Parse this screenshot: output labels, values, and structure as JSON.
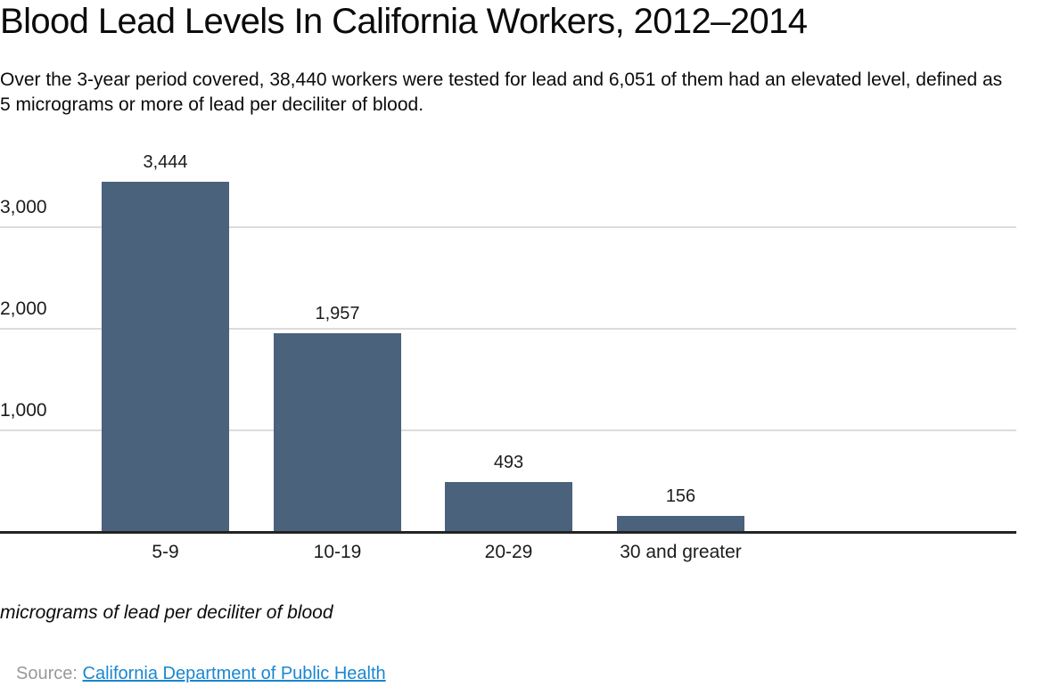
{
  "header": {
    "title": "Blood Lead Levels In California Workers, 2012–2014",
    "subtitle": "Over the 3-year period covered, 38,440 workers were tested for lead and 6,051 of them had an elevated level, defined as 5 micrograms or more of lead per deciliter of blood."
  },
  "chart_data": {
    "type": "bar",
    "title": "Blood Lead Levels In California Workers, 2012–2014",
    "categories": [
      "5-9",
      "10-19",
      "20-29",
      "30 and greater"
    ],
    "values": [
      3444,
      1957,
      493,
      156
    ],
    "value_labels": [
      "3,444",
      "1,957",
      "493",
      "156"
    ],
    "xlabel": "micrograms of lead per deciliter of blood",
    "ylabel": "",
    "ylim": [
      0,
      3500
    ],
    "yticks": [
      {
        "value": 1000,
        "label": "1,000"
      },
      {
        "value": 2000,
        "label": "2,000"
      },
      {
        "value": 3000,
        "label": "3,000"
      }
    ],
    "grid": "horizontal",
    "legend": "none",
    "bar_color": "#4a627c"
  },
  "footer": {
    "axis_note": "micrograms of lead per deciliter of blood",
    "source_label": "Source:",
    "source_link_text": "California Department of Public Health"
  },
  "colors": {
    "bar": "#4a627c",
    "gridline": "#dcdcdc",
    "axis_line": "#232323",
    "text": "#111111",
    "source_label": "#999999",
    "link": "#1a87d0"
  }
}
